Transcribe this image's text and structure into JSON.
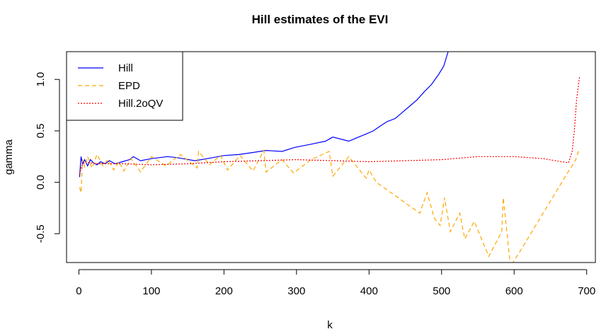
{
  "chart_data": {
    "type": "line",
    "title": "Hill estimates of the EVI",
    "xlabel": "k",
    "ylabel": "gamma",
    "xlim": [
      -17,
      712
    ],
    "ylim": [
      -0.78,
      1.27
    ],
    "x_ticks": [
      0,
      100,
      200,
      300,
      400,
      500,
      600,
      700
    ],
    "x_tick_labels": [
      "0",
      "100",
      "200",
      "300",
      "400",
      "500",
      "600",
      "700"
    ],
    "y_ticks": [
      -0.5,
      0.0,
      0.5,
      1.0
    ],
    "y_tick_labels": [
      "-0.5",
      "0.0",
      "0.5",
      "1.0"
    ],
    "legend_position": "top-left",
    "series": [
      {
        "name": "Hill",
        "color": "#0000ff",
        "style": "solid",
        "x": [
          1,
          3,
          5,
          8,
          12,
          16,
          20,
          25,
          30,
          36,
          42,
          50,
          60,
          70,
          75,
          85,
          100,
          122,
          135,
          160,
          185,
          200,
          220,
          240,
          258,
          280,
          298,
          320,
          340,
          350,
          372,
          396,
          406,
          416,
          425,
          436,
          446,
          456,
          466,
          476,
          486,
          496,
          503,
          509
        ],
        "y": [
          0.05,
          0.25,
          0.18,
          0.22,
          0.16,
          0.22,
          0.19,
          0.17,
          0.2,
          0.18,
          0.21,
          0.18,
          0.2,
          0.22,
          0.25,
          0.21,
          0.23,
          0.25,
          0.24,
          0.21,
          0.24,
          0.26,
          0.27,
          0.29,
          0.31,
          0.3,
          0.34,
          0.37,
          0.4,
          0.44,
          0.4,
          0.47,
          0.5,
          0.55,
          0.59,
          0.62,
          0.68,
          0.74,
          0.8,
          0.88,
          0.95,
          1.05,
          1.13,
          1.27
        ]
      },
      {
        "name": "EPD",
        "color": "#ffa500",
        "style": "dashed",
        "x": [
          1,
          3,
          5,
          8,
          12,
          18,
          25,
          33,
          40,
          48,
          55,
          62,
          72,
          85,
          100,
          120,
          140,
          163,
          165,
          180,
          195,
          205,
          222,
          240,
          255,
          258,
          280,
          296,
          320,
          345,
          350,
          372,
          396,
          400,
          410,
          420,
          430,
          440,
          450,
          460,
          470,
          480,
          490,
          498,
          504,
          512,
          525,
          532,
          545,
          565,
          583,
          585,
          595,
          610,
          640,
          670,
          685,
          690
        ],
        "y": [
          -0.05,
          -0.1,
          0.22,
          0.15,
          0.25,
          0.14,
          0.27,
          0.16,
          0.22,
          0.12,
          0.2,
          0.11,
          0.23,
          0.1,
          0.25,
          0.16,
          0.27,
          0.14,
          0.3,
          0.17,
          0.26,
          0.12,
          0.26,
          0.11,
          0.31,
          0.1,
          0.22,
          0.09,
          0.22,
          0.3,
          0.06,
          0.25,
          0.04,
          0.12,
          0.0,
          -0.05,
          -0.1,
          -0.15,
          -0.2,
          -0.25,
          -0.3,
          -0.1,
          -0.35,
          -0.42,
          -0.15,
          -0.48,
          -0.3,
          -0.55,
          -0.38,
          -0.72,
          -0.48,
          -0.15,
          -0.82,
          -0.65,
          -0.3,
          0.05,
          0.22,
          0.33
        ]
      },
      {
        "name": "Hill.2oQV",
        "color": "#ff0000",
        "style": "dotted",
        "x": [
          1,
          4,
          8,
          15,
          25,
          40,
          60,
          100,
          150,
          200,
          250,
          300,
          350,
          400,
          450,
          500,
          550,
          600,
          640,
          665,
          675,
          680,
          683,
          686,
          690
        ],
        "y": [
          0.08,
          0.16,
          0.2,
          0.19,
          0.18,
          0.18,
          0.18,
          0.17,
          0.18,
          0.2,
          0.21,
          0.22,
          0.21,
          0.2,
          0.21,
          0.22,
          0.25,
          0.25,
          0.23,
          0.2,
          0.19,
          0.3,
          0.5,
          0.8,
          1.02
        ]
      }
    ]
  }
}
